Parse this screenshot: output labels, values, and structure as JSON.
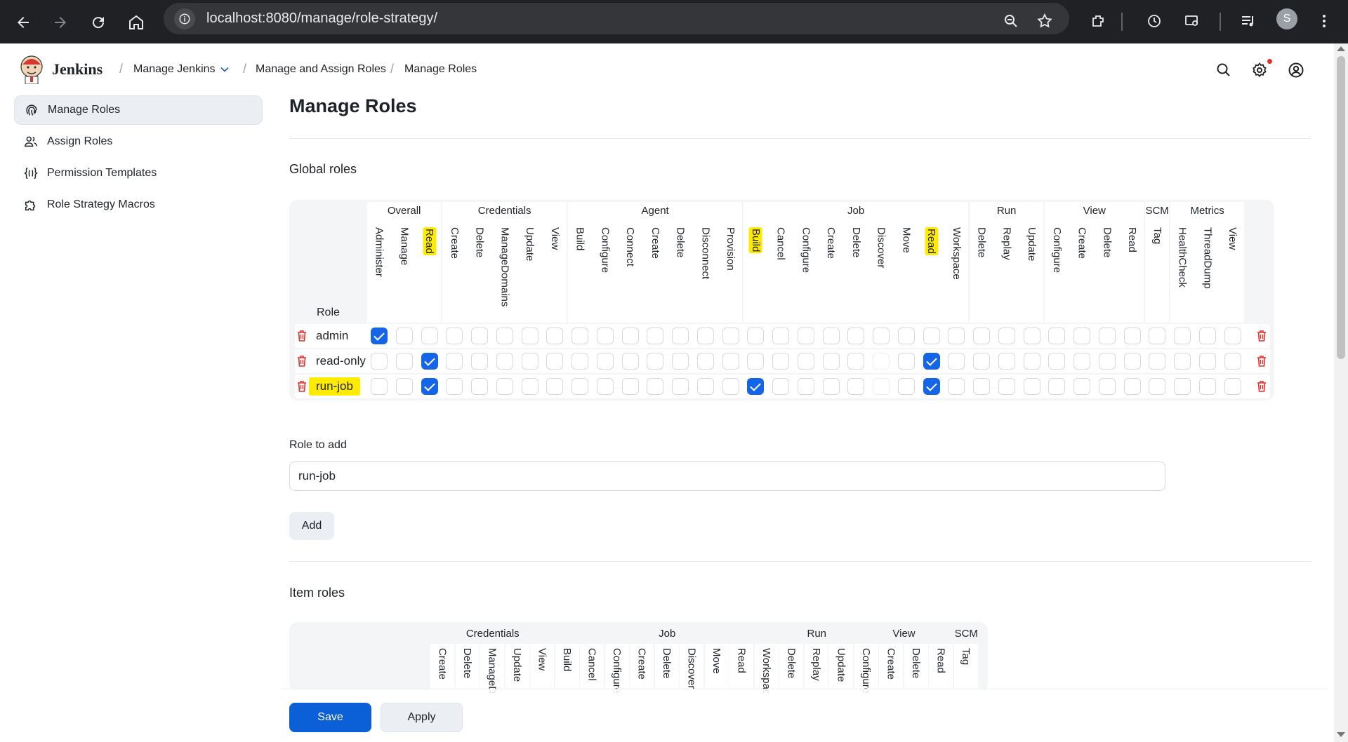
{
  "browser": {
    "url": "localhost:8080/manage/role-strategy/",
    "profile_initial": "S"
  },
  "header": {
    "brand": "Jenkins",
    "breadcrumbs": [
      "Manage Jenkins",
      "Manage and Assign Roles",
      "Manage Roles"
    ]
  },
  "sidebar": {
    "items": [
      {
        "label": "Manage Roles",
        "icon": "fingerprint-icon",
        "active": true
      },
      {
        "label": "Assign Roles",
        "icon": "users-icon",
        "active": false
      },
      {
        "label": "Permission Templates",
        "icon": "braces-icon",
        "active": false
      },
      {
        "label": "Role Strategy Macros",
        "icon": "puzzle-icon",
        "active": false
      }
    ]
  },
  "main": {
    "title": "Manage Roles",
    "global_roles": {
      "title": "Global roles",
      "role_column": "Role",
      "groups": [
        {
          "name": "Overall",
          "permissions": [
            "Administer",
            "Manage",
            "Read"
          ]
        },
        {
          "name": "Credentials",
          "permissions": [
            "Create",
            "Delete",
            "ManageDomains",
            "Update",
            "View"
          ]
        },
        {
          "name": "Agent",
          "permissions": [
            "Build",
            "Configure",
            "Connect",
            "Create",
            "Delete",
            "Disconnect",
            "Provision"
          ]
        },
        {
          "name": "Job",
          "permissions": [
            "Build",
            "Cancel",
            "Configure",
            "Create",
            "Delete",
            "Discover",
            "Move",
            "Read",
            "Workspace"
          ]
        },
        {
          "name": "Run",
          "permissions": [
            "Delete",
            "Replay",
            "Update"
          ]
        },
        {
          "name": "View",
          "permissions": [
            "Configure",
            "Create",
            "Delete",
            "Read"
          ]
        },
        {
          "name": "SCM",
          "permissions": [
            "Tag"
          ]
        },
        {
          "name": "Metrics",
          "permissions": [
            "HealthCheck",
            "ThreadDump",
            "View"
          ]
        }
      ],
      "highlighted_permissions": [
        "Overall.Read",
        "Job.Build",
        "Job.Read"
      ],
      "roles": [
        {
          "name": "admin",
          "highlighted": false,
          "checked": [
            "Overall.Administer"
          ]
        },
        {
          "name": "read-only",
          "highlighted": false,
          "checked": [
            "Overall.Read",
            "Job.Read"
          ]
        },
        {
          "name": "run-job",
          "highlighted": true,
          "checked": [
            "Overall.Read",
            "Job.Build",
            "Job.Read"
          ]
        }
      ]
    },
    "role_to_add": {
      "label": "Role to add",
      "value": "run-job",
      "button": "Add"
    },
    "item_roles": {
      "title": "Item roles",
      "groups": [
        {
          "name": "Credentials",
          "permissions": [
            "Create",
            "Delete",
            "ManageDomains",
            "Update",
            "View"
          ]
        },
        {
          "name": "Job",
          "permissions": [
            "Build",
            "Cancel",
            "Configure",
            "Create",
            "Delete",
            "Discover",
            "Move",
            "Read",
            "Workspace"
          ]
        },
        {
          "name": "Run",
          "permissions": [
            "Delete",
            "Replay",
            "Update"
          ]
        },
        {
          "name": "View",
          "permissions": [
            "Configure",
            "Create",
            "Delete",
            "Read"
          ]
        },
        {
          "name": "SCM",
          "permissions": [
            "Tag"
          ]
        }
      ]
    },
    "actions": {
      "save": "Save",
      "apply": "Apply"
    }
  },
  "colors": {
    "accent": "#0b5fd7",
    "checkbox": "#1565e8",
    "highlight": "#ffeb00",
    "danger": "#e5312c"
  }
}
